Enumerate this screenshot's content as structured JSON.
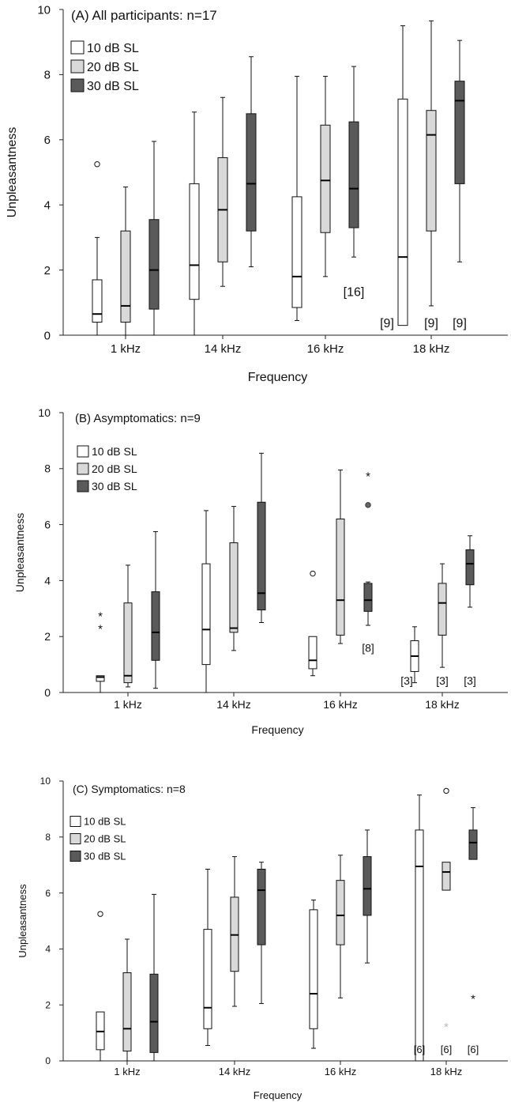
{
  "chart_data": [
    {
      "type": "boxplot",
      "title": "(A) All participants:  n=17",
      "xlabel": "Frequency",
      "ylabel": "Unpleasantness",
      "categories": [
        "1 kHz",
        "14 kHz",
        "16 kHz",
        "18 kHz"
      ],
      "ylim": [
        0,
        10
      ],
      "yticks": [
        "0",
        "2",
        "4",
        "6",
        "8",
        "10"
      ],
      "legend": [
        "10 dB SL",
        "20 dB SL",
        "30 dB SL"
      ],
      "series_colors": [
        "#ffffff",
        "#d9d9d9",
        "#5a5a5a"
      ],
      "boxes": [
        {
          "category": 0,
          "series": 0,
          "min": 0,
          "q1": 0.4,
          "median": 0.65,
          "q3": 1.7,
          "max": 3.0,
          "outliers": [
            {
              "value": 5.25,
              "style": "open"
            }
          ]
        },
        {
          "category": 0,
          "series": 1,
          "min": 0,
          "q1": 0.4,
          "median": 0.9,
          "q3": 3.2,
          "max": 4.55
        },
        {
          "category": 0,
          "series": 2,
          "min": 0,
          "q1": 0.8,
          "median": 2.0,
          "q3": 3.55,
          "max": 5.95
        },
        {
          "category": 1,
          "series": 0,
          "min": 0,
          "q1": 1.1,
          "median": 2.15,
          "q3": 4.65,
          "max": 6.85
        },
        {
          "category": 1,
          "series": 1,
          "min": 1.5,
          "q1": 2.25,
          "median": 3.85,
          "q3": 5.45,
          "max": 7.3
        },
        {
          "category": 1,
          "series": 2,
          "min": 2.1,
          "q1": 3.2,
          "median": 4.65,
          "q3": 6.8,
          "max": 8.55
        },
        {
          "category": 2,
          "series": 0,
          "min": 0.45,
          "q1": 0.85,
          "median": 1.8,
          "q3": 4.25,
          "max": 7.95
        },
        {
          "category": 2,
          "series": 1,
          "min": 1.8,
          "q1": 3.15,
          "median": 4.75,
          "q3": 6.45,
          "max": 7.95
        },
        {
          "category": 2,
          "series": 2,
          "min": 2.4,
          "q1": 3.3,
          "median": 4.5,
          "q3": 6.55,
          "max": 8.25,
          "note": "[16]"
        },
        {
          "category": 3,
          "series": 0,
          "min": 0.3,
          "q1": 0.3,
          "median": 2.4,
          "q3": 7.25,
          "max": 9.5,
          "note": "[9]"
        },
        {
          "category": 3,
          "series": 1,
          "min": 0.9,
          "q1": 3.2,
          "median": 6.15,
          "q3": 6.9,
          "max": 9.65,
          "note": "[9]"
        },
        {
          "category": 3,
          "series": 2,
          "min": 2.25,
          "q1": 4.65,
          "median": 7.2,
          "q3": 7.8,
          "max": 9.05,
          "note": "[9]"
        }
      ]
    },
    {
      "type": "boxplot",
      "title": "(B) Asymptomatics: n=9",
      "xlabel": "Frequency",
      "ylabel": "Unpleasantness",
      "categories": [
        "1 kHz",
        "14 kHz",
        "16 kHz",
        "18 kHz"
      ],
      "ylim": [
        0,
        10
      ],
      "yticks": [
        "0",
        "2",
        "4",
        "6",
        "8",
        "10"
      ],
      "legend": [
        "10 dB SL",
        "20 dB SL",
        "30 dB SL"
      ],
      "series_colors": [
        "#ffffff",
        "#d9d9d9",
        "#5a5a5a"
      ],
      "boxes": [
        {
          "category": 0,
          "series": 0,
          "min": 0.0,
          "q1": 0.4,
          "median": 0.55,
          "q3": 0.6,
          "max": 0.6,
          "outliers": [
            {
              "value": 2.3,
              "style": "star"
            },
            {
              "value": 2.75,
              "style": "star"
            }
          ]
        },
        {
          "category": 0,
          "series": 1,
          "min": 0.2,
          "q1": 0.35,
          "median": 0.6,
          "q3": 3.2,
          "max": 4.55
        },
        {
          "category": 0,
          "series": 2,
          "min": 0.15,
          "q1": 1.15,
          "median": 2.15,
          "q3": 3.6,
          "max": 5.75
        },
        {
          "category": 1,
          "series": 0,
          "min": 0,
          "q1": 1.0,
          "median": 2.25,
          "q3": 4.6,
          "max": 6.5
        },
        {
          "category": 1,
          "series": 1,
          "min": 1.5,
          "q1": 2.15,
          "median": 2.3,
          "q3": 5.35,
          "max": 6.65
        },
        {
          "category": 1,
          "series": 2,
          "min": 2.5,
          "q1": 2.95,
          "median": 3.55,
          "q3": 6.8,
          "max": 8.55
        },
        {
          "category": 2,
          "series": 0,
          "min": 0.6,
          "q1": 0.85,
          "median": 1.15,
          "q3": 2.0,
          "max": 2.0,
          "outliers": [
            {
              "value": 4.25,
              "style": "open"
            }
          ]
        },
        {
          "category": 2,
          "series": 1,
          "min": 1.75,
          "q1": 2.05,
          "median": 3.3,
          "q3": 6.2,
          "max": 7.95
        },
        {
          "category": 2,
          "series": 2,
          "min": 2.4,
          "q1": 2.9,
          "median": 3.3,
          "q3": 3.9,
          "max": 3.95,
          "outliers": [
            {
              "value": 6.7,
              "style": "filled"
            },
            {
              "value": 7.75,
              "style": "star"
            }
          ],
          "note": "[8]"
        },
        {
          "category": 3,
          "series": 0,
          "min": 0.35,
          "q1": 0.75,
          "median": 1.3,
          "q3": 1.85,
          "max": 2.35,
          "note": "[3]"
        },
        {
          "category": 3,
          "series": 1,
          "min": 0.9,
          "q1": 2.05,
          "median": 3.2,
          "q3": 3.9,
          "max": 4.6,
          "note": "[3]"
        },
        {
          "category": 3,
          "series": 2,
          "min": 3.05,
          "q1": 3.85,
          "median": 4.6,
          "q3": 5.1,
          "max": 5.6,
          "note": "[3]"
        }
      ]
    },
    {
      "type": "boxplot",
      "title": "(C) Symptomatics:  n=8",
      "xlabel": "Frequency",
      "ylabel": "Unpleasantness",
      "categories": [
        "1 kHz",
        "14 kHz",
        "16 kHz",
        "18 kHz"
      ],
      "ylim": [
        0,
        10
      ],
      "yticks": [
        "0",
        "2",
        "4",
        "6",
        "8",
        "10"
      ],
      "legend": [
        "10 dB SL",
        "20 dB SL",
        "30 dB SL"
      ],
      "series_colors": [
        "#ffffff",
        "#d9d9d9",
        "#5a5a5a"
      ],
      "boxes": [
        {
          "category": 0,
          "series": 0,
          "min": 0,
          "q1": 0.4,
          "median": 1.05,
          "q3": 1.75,
          "max": 1.75,
          "outliers": [
            {
              "value": 5.25,
              "style": "open"
            }
          ]
        },
        {
          "category": 0,
          "series": 1,
          "min": 0,
          "q1": 0.35,
          "median": 1.15,
          "q3": 3.15,
          "max": 4.35
        },
        {
          "category": 0,
          "series": 2,
          "min": 0,
          "q1": 0.3,
          "median": 1.4,
          "q3": 3.1,
          "max": 5.95
        },
        {
          "category": 1,
          "series": 0,
          "min": 0.55,
          "q1": 1.15,
          "median": 1.9,
          "q3": 4.7,
          "max": 6.85
        },
        {
          "category": 1,
          "series": 1,
          "min": 1.95,
          "q1": 3.2,
          "median": 4.5,
          "q3": 5.85,
          "max": 7.3
        },
        {
          "category": 1,
          "series": 2,
          "min": 2.05,
          "q1": 4.15,
          "median": 6.1,
          "q3": 6.85,
          "max": 7.1
        },
        {
          "category": 2,
          "series": 0,
          "min": 0.45,
          "q1": 1.15,
          "median": 2.4,
          "q3": 5.4,
          "max": 5.75
        },
        {
          "category": 2,
          "series": 1,
          "min": 2.25,
          "q1": 4.15,
          "median": 5.2,
          "q3": 6.45,
          "max": 7.35
        },
        {
          "category": 2,
          "series": 2,
          "min": 3.5,
          "q1": 5.2,
          "median": 6.15,
          "q3": 7.3,
          "max": 8.25
        },
        {
          "category": 3,
          "series": 0,
          "min": 0,
          "q1": 0,
          "median": 6.95,
          "q3": 8.25,
          "max": 9.5,
          "note": "[6]"
        },
        {
          "category": 3,
          "series": 1,
          "min": 6.1,
          "q1": 6.1,
          "median": 6.75,
          "q3": 7.1,
          "max": 7.1,
          "outliers": [
            {
              "value": 9.65,
              "style": "open"
            },
            {
              "value": 1.25,
              "style": "star-light"
            }
          ],
          "note": "[6]"
        },
        {
          "category": 3,
          "series": 2,
          "min": 7.2,
          "q1": 7.2,
          "median": 7.8,
          "q3": 8.25,
          "max": 9.05,
          "outliers": [
            {
              "value": 2.25,
              "style": "star"
            }
          ],
          "note": "[6]"
        }
      ]
    }
  ]
}
